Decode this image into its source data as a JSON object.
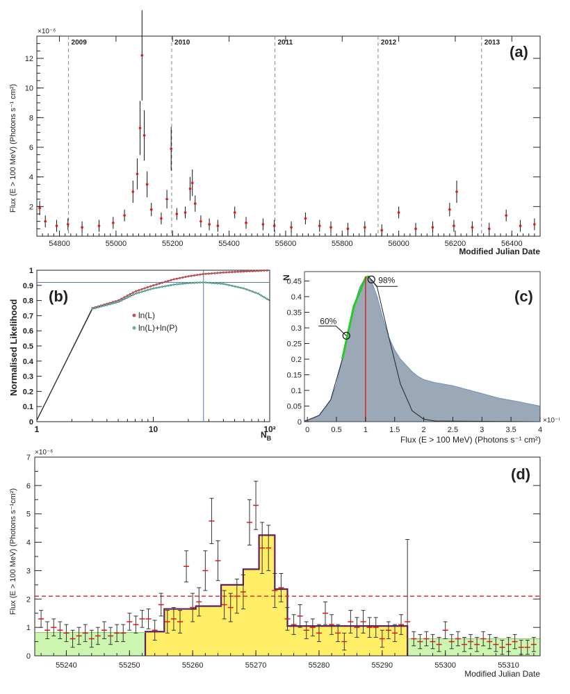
{
  "panel_a": {
    "label": "(a)",
    "ylabel": "Flux (E > 100 MeV) (Photons s⁻¹ cm²)",
    "y_exponent": "×10⁻⁶",
    "xlabel": "Modified Julian Date",
    "years": [
      {
        "label": "2009",
        "mjd": 54832
      },
      {
        "label": "2010",
        "mjd": 55197
      },
      {
        "label": "2011",
        "mjd": 55562
      },
      {
        "label": "2012",
        "mjd": 55927
      },
      {
        "label": "2013",
        "mjd": 56293
      }
    ]
  },
  "panel_b": {
    "label": "(b)",
    "ylabel": "Normalised Likelihood",
    "xlabel": "N",
    "xlabel_sub": "B",
    "legend": [
      "ln(L)",
      "ln(L)+ln(P)"
    ]
  },
  "panel_c": {
    "label": "(c)",
    "ylabel": "N",
    "xlabel": "Flux (E > 100 MeV) (Photons s⁻¹ cm²)",
    "x_exponent": "×10⁻⁶",
    "annotations": [
      "60%",
      "98%"
    ]
  },
  "panel_d": {
    "label": "(d)",
    "ylabel": "Flux (E > 100 MeV) (Photons s⁻¹cm²)",
    "y_exponent": "×10⁻⁶",
    "xlabel": "Modified Julian Date",
    "threshold": 2.1
  },
  "colors": {
    "points": "#e01818",
    "lnL": "#c85050",
    "lnLP": "#60b0a0",
    "histfill": "#9aa8b8",
    "green": "#22cc22",
    "red": "#dd2222",
    "yellow": "#ffee66",
    "lightgreen": "#ccf5b0",
    "purple": "#602060"
  },
  "chart_data": [
    {
      "id": "a",
      "type": "scatter",
      "xlabel": "Modified Julian Date",
      "ylabel": "Flux (E > 100 MeV) (Photons s⁻¹ cm²)",
      "xlim": [
        54720,
        56500
      ],
      "ylim": [
        0,
        13.5
      ],
      "y_scale": "×10⁻⁶",
      "xticks": [
        54800,
        55000,
        55200,
        55400,
        55600,
        55800,
        56000,
        56200,
        56400
      ],
      "yticks": [
        2,
        4,
        6,
        8,
        10,
        12
      ],
      "series": [
        {
          "x": [
            54730,
            54750,
            54790,
            54830,
            54880,
            54940,
            54990,
            55030,
            55060,
            55075,
            55085,
            55092,
            55100,
            55110,
            55125,
            55160,
            55180,
            55195,
            55215,
            55245,
            55262,
            55270,
            55280,
            55300,
            55330,
            55360,
            55420,
            55460,
            55520,
            55560,
            55620,
            55670,
            55720,
            55760,
            55820,
            55880,
            55940,
            56000,
            56060,
            56120,
            56180,
            56195,
            56205,
            56260,
            56320,
            56380,
            56430,
            56480
          ],
          "y": [
            1.9,
            1.0,
            0.7,
            0.8,
            0.6,
            0.7,
            0.9,
            1.4,
            3.0,
            4.2,
            7.3,
            12.2,
            6.8,
            3.5,
            1.8,
            1.2,
            2.5,
            5.9,
            1.5,
            1.6,
            3.2,
            3.6,
            2.2,
            1.0,
            0.8,
            0.7,
            1.6,
            0.9,
            0.8,
            0.7,
            0.6,
            1.2,
            0.7,
            0.6,
            0.5,
            0.6,
            0.4,
            1.6,
            0.5,
            0.6,
            1.8,
            0.7,
            3.0,
            0.6,
            0.5,
            1.4,
            0.7,
            0.8
          ]
        }
      ]
    },
    {
      "id": "b",
      "type": "line",
      "xlabel": "N_B",
      "ylabel": "Normalised Likelihood",
      "x_scale": "log",
      "xlim": [
        1,
        100
      ],
      "ylim": [
        0,
        1
      ],
      "xticks": [
        1,
        10,
        100
      ],
      "yticks": [
        0,
        0.1,
        0.2,
        0.3,
        0.4,
        0.5,
        0.6,
        0.7,
        0.8,
        0.9,
        1
      ],
      "crosshair": {
        "x": 27,
        "y": 0.92
      },
      "series": [
        {
          "name": "ln(L)",
          "x": [
            1,
            3,
            5,
            7,
            10,
            15,
            20,
            27,
            40,
            60,
            80,
            100
          ],
          "y": [
            0.01,
            0.75,
            0.8,
            0.86,
            0.9,
            0.94,
            0.96,
            0.975,
            0.985,
            0.992,
            0.996,
            1.0
          ]
        },
        {
          "name": "ln(L)+ln(P)",
          "x": [
            1,
            3,
            5,
            7,
            10,
            15,
            20,
            27,
            40,
            60,
            80,
            100
          ],
          "y": [
            0.01,
            0.745,
            0.79,
            0.845,
            0.88,
            0.905,
            0.915,
            0.92,
            0.91,
            0.88,
            0.845,
            0.8
          ]
        }
      ]
    },
    {
      "id": "c",
      "type": "area",
      "xlabel": "Flux (E > 100 MeV) (Photons s⁻¹ cm²)",
      "ylabel": "N",
      "xlim": [
        -0.05,
        4
      ],
      "ylim": [
        0,
        0.48
      ],
      "x_scale": "×10⁻⁶",
      "xticks": [
        0,
        0.5,
        1,
        1.5,
        2,
        2.5,
        3,
        3.5,
        4
      ],
      "yticks": [
        0,
        0.05,
        0.1,
        0.15,
        0.2,
        0.25,
        0.3,
        0.35,
        0.4,
        0.45
      ],
      "series": [
        {
          "name": "histogram",
          "x": [
            -0.05,
            0,
            0.1,
            0.2,
            0.3,
            0.4,
            0.5,
            0.6,
            0.7,
            0.8,
            0.9,
            1.0,
            1.05,
            1.1,
            1.2,
            1.3,
            1.4,
            1.5,
            1.6,
            1.7,
            1.8,
            1.9,
            2.0,
            2.2,
            2.5,
            2.8,
            3.0,
            3.3,
            3.6,
            4.0
          ],
          "y": [
            0,
            0.005,
            0.01,
            0.02,
            0.04,
            0.07,
            0.12,
            0.2,
            0.29,
            0.37,
            0.43,
            0.463,
            0.465,
            0.45,
            0.4,
            0.33,
            0.27,
            0.23,
            0.2,
            0.18,
            0.16,
            0.145,
            0.135,
            0.125,
            0.115,
            0.1,
            0.09,
            0.075,
            0.065,
            0.05
          ]
        },
        {
          "name": "gaussian",
          "x": [
            -0.05,
            0,
            0.2,
            0.4,
            0.6,
            0.8,
            1.0,
            1.05,
            1.2,
            1.4,
            1.6,
            1.8,
            2.0,
            2.2,
            4.0
          ],
          "y": [
            0.003,
            0.005,
            0.02,
            0.07,
            0.2,
            0.37,
            0.46,
            0.465,
            0.43,
            0.27,
            0.12,
            0.035,
            0.008,
            0.002,
            0
          ]
        }
      ],
      "markers": [
        {
          "label": "60%",
          "x": 0.67,
          "y": 0.275
        },
        {
          "label": "98%",
          "x": 1.1,
          "y": 0.455
        }
      ],
      "vline": 1.0
    },
    {
      "id": "d",
      "type": "scatter",
      "xlabel": "Modified Julian Date",
      "ylabel": "Flux (E > 100 MeV) (Photons s⁻¹cm²)",
      "xlim": [
        55235,
        55315
      ],
      "ylim": [
        0,
        7
      ],
      "y_scale": "×10⁻⁶",
      "xticks": [
        55240,
        55250,
        55260,
        55270,
        55280,
        55290,
        55300,
        55310
      ],
      "yticks": [
        0,
        1,
        2,
        3,
        4,
        5,
        6,
        7
      ],
      "threshold": 2.1,
      "blocks": [
        {
          "x0": 55235,
          "x1": 55252.5,
          "y": 0.82,
          "state": "quiescent"
        },
        {
          "x0": 55252.5,
          "x1": 55255.5,
          "y": 0.85,
          "state": "flare"
        },
        {
          "x0": 55255.5,
          "x1": 55260.5,
          "y": 1.65,
          "state": "flare"
        },
        {
          "x0": 55260.5,
          "x1": 55264.5,
          "y": 1.75,
          "state": "flare"
        },
        {
          "x0": 55264.5,
          "x1": 55268,
          "y": 2.5,
          "state": "flare"
        },
        {
          "x0": 55268,
          "x1": 55270.5,
          "y": 3.05,
          "state": "flare"
        },
        {
          "x0": 55270.5,
          "x1": 55273,
          "y": 4.25,
          "state": "flare"
        },
        {
          "x0": 55273,
          "x1": 55275,
          "y": 2.35,
          "state": "flare"
        },
        {
          "x0": 55275,
          "x1": 55294,
          "y": 1.05,
          "state": "flare"
        },
        {
          "x0": 55294,
          "x1": 55315,
          "y": 0.6,
          "state": "quiescent"
        }
      ],
      "series": [
        {
          "x": [
            55236,
            55237,
            55238,
            55239,
            55240,
            55241,
            55242,
            55243,
            55244,
            55245,
            55246,
            55247,
            55248,
            55249,
            55250,
            55251,
            55252,
            55253,
            55254,
            55255,
            55256,
            55257,
            55258,
            55259,
            55260,
            55261,
            55262,
            55263,
            55264,
            55265,
            55266,
            55267,
            55268,
            55269,
            55270,
            55271,
            55272,
            55273,
            55274,
            55275,
            55276,
            55277,
            55278,
            55279,
            55280,
            55281,
            55282,
            55283,
            55284,
            55285,
            55286,
            55287,
            55288,
            55289,
            55290,
            55291,
            55292,
            55293,
            55294,
            55295,
            55296,
            55297,
            55298,
            55299,
            55300,
            55301,
            55302,
            55303,
            55304,
            55305,
            55306,
            55307,
            55308,
            55309,
            55310,
            55311,
            55312,
            55313,
            55314
          ],
          "y": [
            1.3,
            0.9,
            1.0,
            0.9,
            0.8,
            0.6,
            0.7,
            0.8,
            0.6,
            0.7,
            0.9,
            0.7,
            0.8,
            0.8,
            1.2,
            1.1,
            1.3,
            1.3,
            0.9,
            1.8,
            1.2,
            1.3,
            1.2,
            3.15,
            1.7,
            1.9,
            3.0,
            4.75,
            3.35,
            1.8,
            1.7,
            2.1,
            2.25,
            4.7,
            5.3,
            3.8,
            3.8,
            2.3,
            2.4,
            1.3,
            1.1,
            1.4,
            0.9,
            1.0,
            0.8,
            1.5,
            1.1,
            0.8,
            0.5,
            1.2,
            1.0,
            1.2,
            1.0,
            1.0,
            0.6,
            0.9,
            0.8,
            1.1,
            1.2,
            0.6,
            0.5,
            0.6,
            0.5,
            0.4,
            0.9,
            0.5,
            0.6,
            0.4,
            0.5,
            0.4,
            0.6,
            0.5,
            0.4,
            0.3,
            0.4,
            0.5,
            0.3,
            0.3,
            0.4
          ],
          "err": [
            0.3,
            0.3,
            0.3,
            0.3,
            0.3,
            0.3,
            0.3,
            0.3,
            0.3,
            0.3,
            0.3,
            0.3,
            0.3,
            0.3,
            0.3,
            0.3,
            0.3,
            0.35,
            0.35,
            0.4,
            0.4,
            0.4,
            0.4,
            0.55,
            0.5,
            0.5,
            0.7,
            0.8,
            0.7,
            0.5,
            0.5,
            0.6,
            0.6,
            0.8,
            0.85,
            0.9,
            0.8,
            0.6,
            0.5,
            0.4,
            0.35,
            0.4,
            0.3,
            0.3,
            0.3,
            0.4,
            0.35,
            0.3,
            0.3,
            0.4,
            0.35,
            0.4,
            0.35,
            0.35,
            0.3,
            0.3,
            0.3,
            0.35,
            2.9,
            0.25,
            0.25,
            0.25,
            0.25,
            0.25,
            0.3,
            0.25,
            0.25,
            0.25,
            0.25,
            0.25,
            0.25,
            0.25,
            0.25,
            0.25,
            0.25,
            0.25,
            0.25,
            0.25,
            0.25
          ]
        }
      ]
    }
  ]
}
